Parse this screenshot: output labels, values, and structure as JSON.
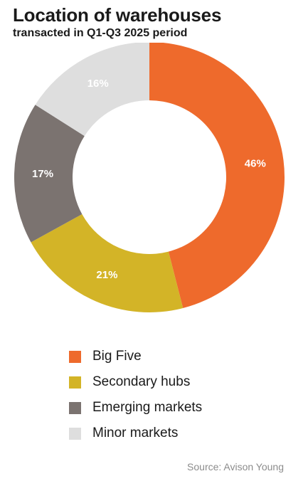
{
  "title": "Location of warehouses",
  "subtitle": "transacted in Q1-Q3 2025 period",
  "source": "Source: Avison Young",
  "chart_data": {
    "type": "pie",
    "title": "Location of warehouses",
    "subtitle": "transacted in Q1-Q3 2025 period",
    "categories": [
      "Big Five",
      "Secondary hubs",
      "Emerging markets",
      "Minor markets"
    ],
    "values": [
      46,
      21,
      17,
      16
    ],
    "value_labels": [
      "46%",
      "21%",
      "17%",
      "16%"
    ],
    "colors": [
      "#ee6a2c",
      "#d3b427",
      "#7b7370",
      "#dedede"
    ],
    "label_colors": [
      "#ffffff",
      "#ffffff",
      "#ffffff",
      "#ffffff"
    ],
    "legend_position": "bottom",
    "donut": true
  }
}
